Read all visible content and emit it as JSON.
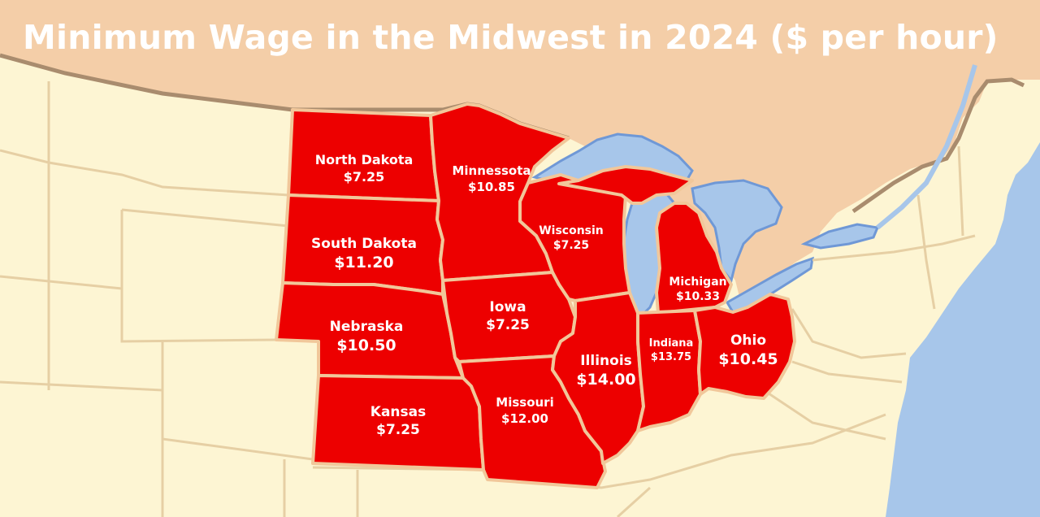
{
  "title": "Minimum Wage in the Midwest in 2024 ($ per hour)",
  "colors": {
    "highlighted_state": "#ed0000",
    "state_border": "#f1c79a",
    "other_land": "#fdf5d3",
    "canada": "#f4cea8",
    "water": "#a7c6ea",
    "international_border": "#a98c6e"
  },
  "states": [
    {
      "id": "north-dakota",
      "name": "North Dakota",
      "wage": "$7.25"
    },
    {
      "id": "south-dakota",
      "name": "South Dakota",
      "wage": "$11.20"
    },
    {
      "id": "nebraska",
      "name": "Nebraska",
      "wage": "$10.50"
    },
    {
      "id": "kansas",
      "name": "Kansas",
      "wage": "$7.25"
    },
    {
      "id": "minnesota",
      "name": "Minnessota",
      "wage": "$10.85"
    },
    {
      "id": "iowa",
      "name": "Iowa",
      "wage": "$7.25"
    },
    {
      "id": "missouri",
      "name": "Missouri",
      "wage": "$12.00"
    },
    {
      "id": "wisconsin",
      "name": "Wisconsin",
      "wage": "$7.25"
    },
    {
      "id": "illinois",
      "name": "Illinois",
      "wage": "$14.00"
    },
    {
      "id": "michigan",
      "name": "Michigan",
      "wage": "$10.33"
    },
    {
      "id": "indiana",
      "name": "Indiana",
      "wage": "$13.75"
    },
    {
      "id": "ohio",
      "name": "Ohio",
      "wage": "$10.45"
    }
  ]
}
